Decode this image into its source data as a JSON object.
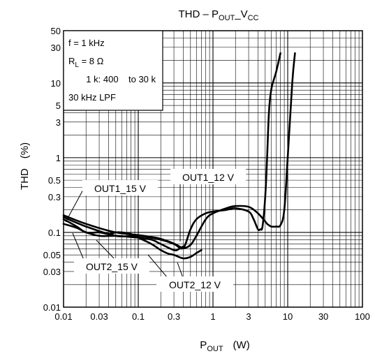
{
  "chart_data": {
    "type": "line",
    "title": {
      "main": "THD – P",
      "sub1": "OUT",
      "mid": "_V",
      "sub2": "CC"
    },
    "xlabel": {
      "main": "P",
      "sub": "OUT",
      "unit": "(W)"
    },
    "ylabel": {
      "main": "THD",
      "unit": "(%)"
    },
    "xscale": "log",
    "yscale": "log",
    "xlim": [
      0.01,
      100
    ],
    "ylim": [
      0.01,
      50
    ],
    "grid": true,
    "x_ticks": [
      {
        "value": 0.01,
        "label": "0.01"
      },
      {
        "value": 0.03,
        "label": "0.03"
      },
      {
        "value": 0.1,
        "label": "0.1"
      },
      {
        "value": 0.3,
        "label": "0.3"
      },
      {
        "value": 1,
        "label": "1"
      },
      {
        "value": 3,
        "label": "3"
      },
      {
        "value": 10,
        "label": "10"
      },
      {
        "value": 30,
        "label": "30"
      },
      {
        "value": 100,
        "label": "100"
      }
    ],
    "y_ticks": [
      {
        "value": 0.01,
        "label": "0.01"
      },
      {
        "value": 0.03,
        "label": "0.03"
      },
      {
        "value": 0.05,
        "label": "0.05"
      },
      {
        "value": 0.1,
        "label": "0.1"
      },
      {
        "value": 0.3,
        "label": "0.3"
      },
      {
        "value": 0.5,
        "label": "0.5"
      },
      {
        "value": 1,
        "label": "1"
      },
      {
        "value": 3,
        "label": "3"
      },
      {
        "value": 5,
        "label": "5"
      },
      {
        "value": 10,
        "label": "10"
      },
      {
        "value": 30,
        "label": "30"
      },
      {
        "value": 50,
        "label": "50"
      }
    ],
    "conditions": {
      "line1": {
        "main": "f = 1 kHz"
      },
      "line2": {
        "main": "R",
        "sub": "L",
        "rest": " = 8 Ω"
      },
      "line3": {
        "main": "1 k: 400    to 30 k"
      },
      "line4": {
        "main": "30 kHz LPF"
      }
    },
    "series": [
      {
        "name": "OUT1_15 V",
        "x": [
          0.01,
          0.02,
          0.05,
          0.1,
          0.15,
          0.2,
          0.3,
          0.4,
          0.5,
          0.6,
          0.8,
          1.0,
          1.5,
          2.0,
          3.0,
          4.0,
          5.0,
          5.3,
          5.6,
          6.0,
          7.0,
          8.0,
          9.0,
          10.0,
          11.5,
          12.5
        ],
        "y": [
          0.17,
          0.13,
          0.1,
          0.092,
          0.087,
          0.082,
          0.071,
          0.062,
          0.068,
          0.09,
          0.15,
          0.18,
          0.21,
          0.225,
          0.22,
          0.18,
          0.14,
          0.13,
          0.125,
          0.12,
          0.12,
          0.125,
          0.2,
          1.0,
          10.0,
          25.0
        ]
      },
      {
        "name": "OUT1_12 V",
        "x": [
          0.01,
          0.02,
          0.05,
          0.1,
          0.2,
          0.3,
          0.4,
          0.5,
          0.6,
          0.8,
          1.0,
          1.5,
          2.0,
          3.0,
          3.5,
          4.0,
          4.3,
          4.6,
          5.0,
          5.3,
          5.6,
          6.0,
          6.5,
          7.0,
          8.0
        ],
        "y": [
          0.16,
          0.12,
          0.09,
          0.09,
          0.08,
          0.07,
          0.062,
          0.11,
          0.15,
          0.18,
          0.19,
          0.2,
          0.21,
          0.19,
          0.15,
          0.11,
          0.11,
          0.12,
          0.3,
          1.0,
          4.0,
          8.0,
          11.0,
          14.0,
          25.0
        ]
      },
      {
        "name": "OUT2_15 V",
        "x": [
          0.01,
          0.015,
          0.02,
          0.03,
          0.05,
          0.07,
          0.1,
          0.15,
          0.2,
          0.3,
          0.35,
          0.4
        ],
        "y": [
          0.13,
          0.115,
          0.1,
          0.09,
          0.09,
          0.088,
          0.085,
          0.08,
          0.07,
          0.058,
          0.06,
          0.065
        ]
      },
      {
        "name": "OUT2_12 V",
        "x": [
          0.01,
          0.015,
          0.02,
          0.03,
          0.04,
          0.05,
          0.06,
          0.08,
          0.1,
          0.15,
          0.2,
          0.25,
          0.3,
          0.4,
          0.5,
          0.6,
          0.7
        ],
        "y": [
          0.15,
          0.12,
          0.1,
          0.1,
          0.095,
          0.1,
          0.1,
          0.095,
          0.085,
          0.07,
          0.058,
          0.052,
          0.05,
          0.045,
          0.047,
          0.053,
          0.058
        ]
      }
    ],
    "callouts": [
      {
        "series": "OUT1_15 V",
        "label": "OUT1_15 V"
      },
      {
        "series": "OUT1_12 V",
        "label": "OUT1_12 V"
      },
      {
        "series": "OUT2_15 V",
        "label": "OUT2_15 V"
      },
      {
        "series": "OUT2_12 V",
        "label": "OUT2_12 V"
      }
    ]
  }
}
